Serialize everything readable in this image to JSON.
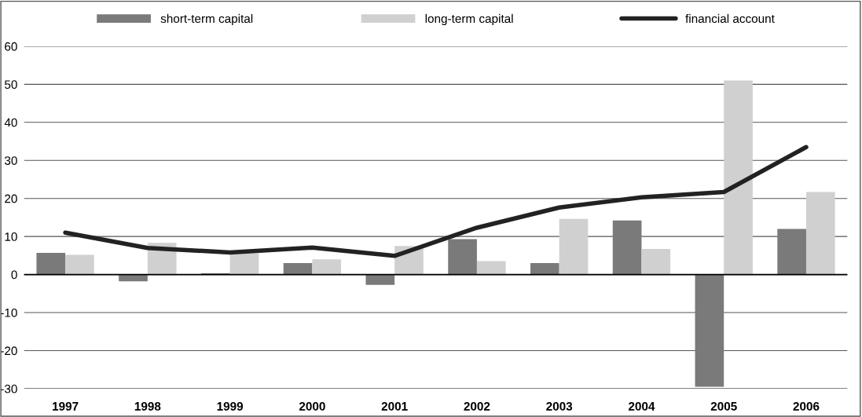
{
  "chart_data": {
    "type": "bar",
    "categories": [
      "1997",
      "1998",
      "1999",
      "2000",
      "2001",
      "2002",
      "2003",
      "2004",
      "2005",
      "2006"
    ],
    "series": [
      {
        "name": "short-term capital",
        "color": "#7a7a7a",
        "values": [
          5.7,
          -1.8,
          0.3,
          3.0,
          -2.7,
          9.3,
          3.0,
          14.2,
          -29.5,
          12.0
        ]
      },
      {
        "name": "long-term capital",
        "color": "#d0d0d0",
        "values": [
          5.2,
          8.3,
          5.6,
          4.0,
          7.5,
          3.5,
          14.6,
          6.7,
          51.0,
          21.7
        ]
      },
      {
        "name": "financial account",
        "type": "line",
        "color": "#222222",
        "values": [
          11.0,
          7.0,
          5.8,
          7.1,
          4.9,
          12.3,
          17.6,
          20.3,
          21.7,
          33.5
        ]
      }
    ],
    "ylim": [
      -30,
      60
    ],
    "yticks": [
      -30,
      -20,
      -10,
      0,
      10,
      20,
      30,
      40,
      50,
      60
    ],
    "grid": "y",
    "legend": "top",
    "ref_lines": [
      {
        "axis": "y",
        "value": 0,
        "color": "#000000"
      }
    ]
  }
}
